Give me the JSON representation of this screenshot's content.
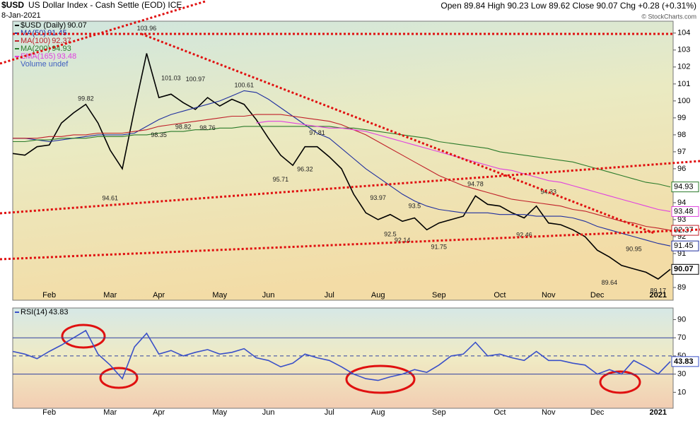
{
  "header": {
    "title": "$USD",
    "subtitle": "US Dollar Index - Cash Settle (EOD) ICE",
    "date": "8-Jan-2021",
    "quote": "Open 89.84 High 90.23 Low 89.62 Close 90.07 Chg +0.28 (+0.31%)",
    "source": "© StockCharts.com"
  },
  "chart_data": [
    {
      "type": "line",
      "categories": [
        null,
        null,
        null,
        "Feb",
        null,
        null,
        null,
        null,
        "Mar",
        null,
        null,
        null,
        "Apr",
        null,
        null,
        null,
        null,
        "May",
        null,
        null,
        null,
        "Jun",
        null,
        null,
        null,
        null,
        "Jul",
        null,
        null,
        null,
        "Aug",
        null,
        null,
        null,
        null,
        "Sep",
        null,
        null,
        null,
        null,
        "Oct",
        null,
        null,
        null,
        "Nov",
        null,
        null,
        null,
        "Dec",
        null,
        null,
        null,
        null,
        "2021",
        null
      ],
      "ylim": [
        88.25,
        104.7
      ],
      "yticks": [
        89,
        90,
        91,
        92,
        93,
        94,
        95,
        96,
        97,
        98,
        99,
        100,
        101,
        102,
        103,
        104
      ],
      "legend_note": "Volume undef",
      "series": [
        {
          "name": "$USD (Daily)",
          "color": "#000000",
          "values": [
            96.9,
            96.8,
            97.3,
            97.4,
            98.7,
            99.3,
            99.8,
            98.7,
            97.1,
            96.0,
            99.5,
            102.8,
            100.2,
            100.4,
            99.9,
            99.5,
            100.2,
            99.7,
            100.1,
            99.8,
            98.9,
            97.8,
            96.8,
            96.2,
            97.3,
            97.3,
            96.7,
            96.0,
            94.5,
            93.4,
            93.0,
            93.3,
            92.9,
            93.1,
            92.4,
            92.8,
            93.0,
            93.2,
            94.4,
            93.9,
            93.8,
            93.4,
            93.1,
            93.8,
            92.8,
            92.7,
            92.4,
            92.0,
            91.2,
            90.8,
            90.3,
            90.1,
            89.9,
            89.5,
            90.07
          ]
        },
        {
          "name": "MA(50)",
          "color": "#1f2f9f",
          "values": [
            97.8,
            97.8,
            97.7,
            97.6,
            97.7,
            97.8,
            97.9,
            98.0,
            98.0,
            98.0,
            98.1,
            98.5,
            98.9,
            99.2,
            99.4,
            99.6,
            99.8,
            100.0,
            100.3,
            100.6,
            100.5,
            100.1,
            99.6,
            99.1,
            98.6,
            98.1,
            97.8,
            97.2,
            96.6,
            96.0,
            95.5,
            95.0,
            94.5,
            94.1,
            93.8,
            93.6,
            93.5,
            93.4,
            93.4,
            93.4,
            93.3,
            93.3,
            93.3,
            93.2,
            93.2,
            93.2,
            93.1,
            92.9,
            92.6,
            92.4,
            92.2,
            92.0,
            91.8,
            91.6,
            91.45
          ]
        },
        {
          "name": "MA(100)",
          "color": "#c0202a",
          "values": [
            97.8,
            97.8,
            97.8,
            97.9,
            97.9,
            98.0,
            98.0,
            98.1,
            98.1,
            98.1,
            98.2,
            98.3,
            98.5,
            98.6,
            98.7,
            98.8,
            98.9,
            99.0,
            99.1,
            99.1,
            99.2,
            99.2,
            99.2,
            99.1,
            99.0,
            98.9,
            98.8,
            98.6,
            98.3,
            98.0,
            97.6,
            97.2,
            96.8,
            96.4,
            96.0,
            95.6,
            95.3,
            95.0,
            94.8,
            94.6,
            94.4,
            94.2,
            94.1,
            94.0,
            93.9,
            93.8,
            93.6,
            93.5,
            93.3,
            93.1,
            92.9,
            92.8,
            92.6,
            92.5,
            92.37
          ]
        },
        {
          "name": "MA(200)",
          "color": "#2a7a2a",
          "values": [
            97.6,
            97.6,
            97.7,
            97.7,
            97.8,
            97.8,
            97.8,
            97.9,
            97.9,
            97.9,
            98.0,
            98.0,
            98.1,
            98.2,
            98.2,
            98.3,
            98.3,
            98.4,
            98.4,
            98.5,
            98.5,
            98.5,
            98.5,
            98.5,
            98.5,
            98.5,
            98.5,
            98.4,
            98.4,
            98.3,
            98.2,
            98.1,
            98.0,
            97.9,
            97.8,
            97.6,
            97.5,
            97.4,
            97.3,
            97.2,
            97.0,
            96.9,
            96.8,
            96.7,
            96.6,
            96.5,
            96.4,
            96.2,
            96.0,
            95.8,
            95.6,
            95.4,
            95.2,
            95.1,
            94.93
          ]
        },
        {
          "name": "EMA(165)",
          "color": "#e040e0",
          "values": [
            null,
            null,
            null,
            null,
            null,
            null,
            null,
            null,
            null,
            null,
            null,
            null,
            null,
            null,
            null,
            null,
            null,
            null,
            null,
            null,
            98.7,
            98.8,
            98.8,
            98.7,
            98.6,
            98.5,
            98.4,
            98.4,
            98.3,
            98.2,
            98.0,
            97.8,
            97.6,
            97.4,
            97.2,
            97.0,
            96.8,
            96.6,
            96.4,
            96.2,
            96.0,
            95.9,
            95.7,
            95.5,
            95.3,
            95.2,
            95.0,
            94.8,
            94.6,
            94.4,
            94.2,
            94.0,
            93.8,
            93.6,
            93.48
          ]
        }
      ],
      "point_labels": [
        null,
        null,
        null,
        null,
        null,
        null,
        99.82,
        null,
        94.61,
        null,
        null,
        103.96,
        98.35,
        101.03,
        98.82,
        100.97,
        98.76,
        null,
        null,
        100.61,
        null,
        null,
        95.71,
        null,
        96.32,
        97.81,
        null,
        null,
        null,
        null,
        93.97,
        92.5,
        92.14,
        93.5,
        null,
        91.75,
        null,
        null,
        94.78,
        null,
        null,
        null,
        92.46,
        null,
        94.33,
        null,
        null,
        null,
        null,
        89.64,
        null,
        90.95,
        null,
        89.17,
        null
      ]
    },
    {
      "type": "line",
      "categories": [
        null,
        null,
        null,
        "Feb",
        null,
        null,
        null,
        null,
        "Mar",
        null,
        null,
        null,
        "Apr",
        null,
        null,
        null,
        null,
        "May",
        null,
        null,
        null,
        "Jun",
        null,
        null,
        null,
        null,
        "Jul",
        null,
        null,
        null,
        "Aug",
        null,
        null,
        null,
        null,
        "Sep",
        null,
        null,
        null,
        null,
        "Oct",
        null,
        null,
        null,
        "Nov",
        null,
        null,
        null,
        "Dec",
        null,
        null,
        null,
        null,
        "2021",
        null
      ],
      "ylim": [
        -7.6,
        102.8
      ],
      "yticks": [
        10,
        30,
        50,
        70,
        90
      ],
      "levels": [
        70,
        50,
        30
      ],
      "series": [
        {
          "name": "RSI(14)",
          "color": "#3a50c8",
          "values": [
            55,
            52,
            47,
            55,
            62,
            70,
            78,
            52,
            40,
            25,
            60,
            75,
            52,
            56,
            50,
            54,
            57,
            52,
            54,
            58,
            48,
            45,
            38,
            42,
            52,
            48,
            45,
            38,
            30,
            25,
            23,
            27,
            30,
            35,
            32,
            40,
            50,
            52,
            65,
            50,
            52,
            48,
            45,
            55,
            45,
            45,
            42,
            40,
            30,
            35,
            30,
            45,
            38,
            30,
            43.83
          ]
        }
      ]
    }
  ]
}
